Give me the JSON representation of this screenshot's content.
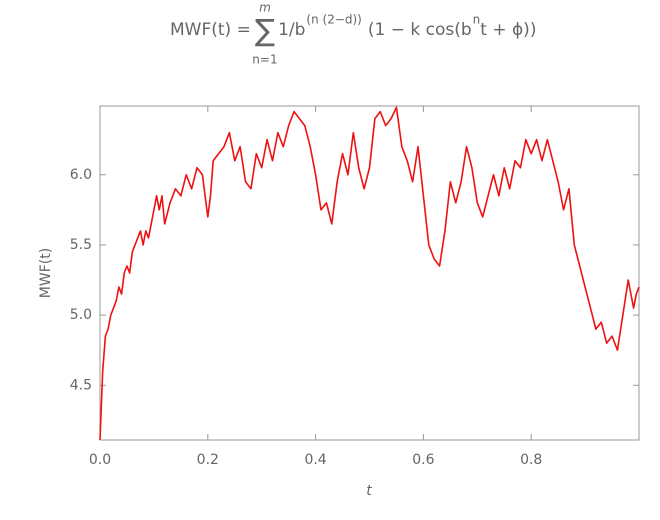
{
  "chart_data": {
    "type": "line",
    "title": {
      "lhs": "MWF(t) =",
      "sum_symbol": "∑",
      "sum_upper": "m",
      "sum_lower": "n=1",
      "term": "1/b",
      "exponent": "(n (2−d))",
      "factor": "(1 − k cos(b",
      "power": "n",
      "tail": " t + ϕ))"
    },
    "x_label": "t",
    "y_label": "MWF(t)",
    "xlim": [
      0,
      1
    ],
    "ylim": [
      4.11,
      6.49
    ],
    "xticks": [
      {
        "value": 0,
        "label": "0.0"
      },
      0.2,
      0.4,
      0.6,
      0.8
    ],
    "yticks": [
      4.5,
      {
        "value": 5,
        "label": "5.0"
      },
      5.5,
      {
        "value": 6,
        "label": "6.0"
      }
    ],
    "x": [
      0,
      0.005,
      0.01,
      0.015,
      0.02,
      0.025,
      0.03,
      0.035,
      0.04,
      0.045,
      0.05,
      0.055,
      0.06,
      0.065,
      0.07,
      0.075,
      0.08,
      0.085,
      0.09,
      0.1,
      0.105,
      0.11,
      0.115,
      0.12,
      0.13,
      0.14,
      0.15,
      0.16,
      0.17,
      0.18,
      0.19,
      0.2,
      0.205,
      0.21,
      0.22,
      0.23,
      0.24,
      0.25,
      0.26,
      0.27,
      0.28,
      0.29,
      0.3,
      0.31,
      0.32,
      0.33,
      0.34,
      0.35,
      0.36,
      0.37,
      0.38,
      0.39,
      0.4,
      0.41,
      0.42,
      0.43,
      0.44,
      0.45,
      0.46,
      0.47,
      0.48,
      0.49,
      0.5,
      0.51,
      0.52,
      0.53,
      0.54,
      0.55,
      0.56,
      0.57,
      0.58,
      0.59,
      0.6,
      0.61,
      0.62,
      0.63,
      0.64,
      0.65,
      0.66,
      0.67,
      0.68,
      0.69,
      0.7,
      0.71,
      0.72,
      0.73,
      0.74,
      0.75,
      0.76,
      0.77,
      0.78,
      0.79,
      0.8,
      0.81,
      0.82,
      0.83,
      0.84,
      0.85,
      0.86,
      0.87,
      0.88,
      0.89,
      0.9,
      0.91,
      0.92,
      0.93,
      0.94,
      0.95,
      0.96,
      0.97,
      0.98,
      0.99,
      0.995,
      1
    ],
    "series": [
      {
        "color": "#ee1111",
        "values": [
          4.11,
          4.6,
          4.85,
          4.9,
          5.0,
          5.05,
          5.1,
          5.2,
          5.15,
          5.3,
          5.35,
          5.3,
          5.45,
          5.5,
          5.55,
          5.6,
          5.5,
          5.6,
          5.55,
          5.75,
          5.85,
          5.75,
          5.85,
          5.65,
          5.8,
          5.9,
          5.85,
          6.0,
          5.9,
          6.05,
          6.0,
          5.7,
          5.85,
          6.1,
          6.15,
          6.2,
          6.3,
          6.1,
          6.2,
          5.95,
          5.9,
          6.15,
          6.05,
          6.25,
          6.1,
          6.3,
          6.2,
          6.35,
          6.45,
          6.4,
          6.35,
          6.2,
          6.0,
          5.75,
          5.8,
          5.65,
          5.95,
          6.15,
          6.0,
          6.3,
          6.05,
          5.9,
          6.05,
          6.4,
          6.45,
          6.35,
          6.4,
          6.48,
          6.2,
          6.1,
          5.95,
          6.2,
          5.85,
          5.5,
          5.4,
          5.35,
          5.6,
          5.95,
          5.8,
          5.95,
          6.2,
          6.05,
          5.8,
          5.7,
          5.85,
          6.0,
          5.85,
          6.05,
          5.9,
          6.1,
          6.05,
          6.25,
          6.15,
          6.25,
          6.1,
          6.25,
          6.1,
          5.95,
          5.75,
          5.9,
          5.5,
          5.35,
          5.2,
          5.05,
          4.9,
          4.95,
          4.8,
          4.85,
          4.75,
          5.0,
          5.25,
          5.05,
          5.15,
          5.2
        ]
      }
    ]
  }
}
